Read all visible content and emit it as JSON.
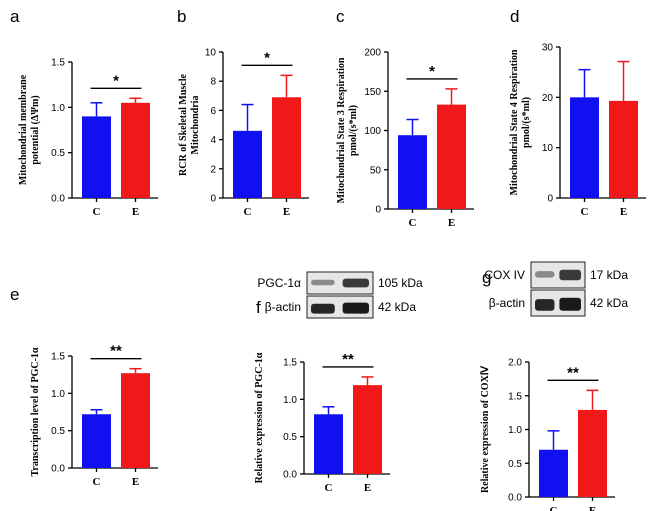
{
  "chart_data": [
    {
      "type": "bar",
      "panel": "a",
      "categories": [
        "C",
        "E"
      ],
      "values": [
        0.9,
        1.05
      ],
      "errors": [
        0.15,
        0.05
      ],
      "colors": [
        "#1010f0",
        "#f01818"
      ],
      "ylabel": [
        "Mitochondrial membrane",
        "potential (ΔΨm)"
      ],
      "ylim": [
        0,
        1.5
      ],
      "yticks": [
        "0.0",
        "0.5",
        "1.0",
        "1.5"
      ],
      "significance": "*"
    },
    {
      "type": "bar",
      "panel": "b",
      "categories": [
        "C",
        "E"
      ],
      "values": [
        4.6,
        6.9
      ],
      "errors": [
        1.8,
        1.5
      ],
      "colors": [
        "#1010f0",
        "#f01818"
      ],
      "ylabel": [
        "RCR of Skeletal Muscle",
        "Mitochondria"
      ],
      "ylim": [
        0,
        10
      ],
      "yticks": [
        "0",
        "2",
        "4",
        "6",
        "8",
        "10"
      ],
      "significance": "*"
    },
    {
      "type": "bar",
      "panel": "c",
      "categories": [
        "C",
        "E"
      ],
      "values": [
        94,
        133
      ],
      "errors": [
        20,
        20
      ],
      "colors": [
        "#1010f0",
        "#f01818"
      ],
      "ylabel": [
        "Mitochondrial State 3 Respiration",
        "pmol/(s*ml)"
      ],
      "ylim": [
        0,
        200
      ],
      "yticks": [
        "0",
        "50",
        "100",
        "150",
        "200"
      ],
      "significance": "*"
    },
    {
      "type": "bar",
      "panel": "d",
      "categories": [
        "C",
        "E"
      ],
      "values": [
        20,
        19.3
      ],
      "errors": [
        5.5,
        7.8
      ],
      "colors": [
        "#1010f0",
        "#f01818"
      ],
      "ylabel": [
        "Mitochondrial State 4 Respiration",
        "pmol/(s*ml)"
      ],
      "ylim": [
        0,
        30
      ],
      "yticks": [
        "0",
        "10",
        "20",
        "30"
      ],
      "significance": ""
    },
    {
      "type": "bar",
      "panel": "e",
      "categories": [
        "C",
        "E"
      ],
      "values": [
        0.72,
        1.27
      ],
      "errors": [
        0.06,
        0.06
      ],
      "colors": [
        "#1010f0",
        "#f01818"
      ],
      "ylabel": [
        "Transcription level of PGC-1α"
      ],
      "ylim": [
        0,
        1.5
      ],
      "yticks": [
        "0.0",
        "0.5",
        "1.0",
        "1.5"
      ],
      "significance": "**"
    },
    {
      "type": "bar",
      "panel": "f",
      "categories": [
        "C",
        "E"
      ],
      "values": [
        0.8,
        1.19
      ],
      "errors": [
        0.1,
        0.11
      ],
      "colors": [
        "#1010f0",
        "#f01818"
      ],
      "ylabel": [
        "Relative expression of PGC-1α"
      ],
      "ylim": [
        0,
        1.5
      ],
      "yticks": [
        "0.0",
        "0.5",
        "1.0",
        "1.5"
      ],
      "significance": "**"
    },
    {
      "type": "bar",
      "panel": "g",
      "categories": [
        "C",
        "E"
      ],
      "values": [
        0.7,
        1.29
      ],
      "errors": [
        0.28,
        0.29
      ],
      "colors": [
        "#1010f0",
        "#f01818"
      ],
      "ylabel": [
        "Relative expression of COXⅣ"
      ],
      "ylim": [
        0,
        2.0
      ],
      "yticks": [
        "0.0",
        "0.5",
        "1.0",
        "1.5",
        "2.0"
      ],
      "significance": "**"
    }
  ],
  "blots": [
    {
      "panel": "f",
      "rows": [
        {
          "protein": "PGC-1α",
          "size": "105 kDa"
        },
        {
          "protein": "β-actin",
          "size": "42 kDa"
        }
      ]
    },
    {
      "panel": "g",
      "rows": [
        {
          "protein": "COX IV",
          "size": "17 kDa"
        },
        {
          "protein": "β-actin",
          "size": "42 kDa"
        }
      ]
    }
  ]
}
